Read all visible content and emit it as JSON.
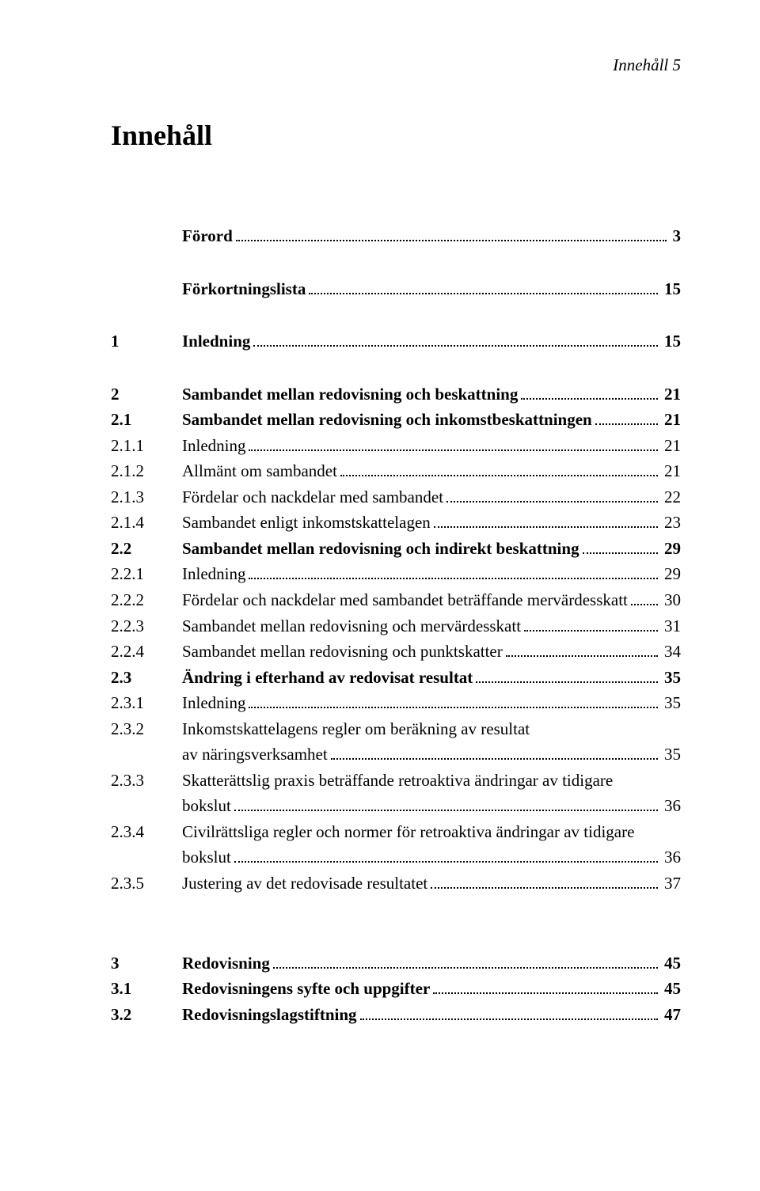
{
  "running_head": "Innehåll   5",
  "chapter_title": "Innehåll",
  "font": {
    "family": "Times New Roman",
    "body_size_pt": 16,
    "title_size_pt": 27,
    "color": "#000000",
    "background": "#ffffff",
    "leader_color": "#000000"
  },
  "toc": [
    {
      "type": "entry",
      "num": "",
      "title": "Förord",
      "page": "3",
      "bold": true
    },
    {
      "type": "gap"
    },
    {
      "type": "entry",
      "num": "",
      "title": "Förkortningslista",
      "page": "15",
      "bold": true
    },
    {
      "type": "gap"
    },
    {
      "type": "entry",
      "num": "1",
      "title": "Inledning",
      "page": "15",
      "bold": true
    },
    {
      "type": "gap"
    },
    {
      "type": "entry",
      "num": "2",
      "title": "Sambandet mellan redovisning och beskattning",
      "page": "21",
      "bold": true
    },
    {
      "type": "entry",
      "num": "2.1",
      "title": "Sambandet mellan redovisning och inkomstbeskattningen",
      "page": "21",
      "bold": true
    },
    {
      "type": "entry",
      "num": "2.1.1",
      "title": "Inledning",
      "page": "21",
      "bold": false
    },
    {
      "type": "entry",
      "num": "2.1.2",
      "title": "Allmänt om sambandet",
      "page": "21",
      "bold": false
    },
    {
      "type": "entry",
      "num": "2.1.3",
      "title": "Fördelar och nackdelar med sambandet",
      "page": "22",
      "bold": false
    },
    {
      "type": "entry",
      "num": "2.1.4",
      "title": "Sambandet enligt inkomstskattelagen",
      "page": "23",
      "bold": false
    },
    {
      "type": "entry",
      "num": "2.2",
      "title": "Sambandet mellan redovisning och indirekt beskattning",
      "page": "29",
      "bold": true
    },
    {
      "type": "entry",
      "num": "2.2.1",
      "title": "Inledning",
      "page": "29",
      "bold": false
    },
    {
      "type": "entry",
      "num": "2.2.2",
      "title": "Fördelar och nackdelar med sambandet beträffande mervärdesskatt",
      "page": "30",
      "bold": false
    },
    {
      "type": "entry",
      "num": "2.2.3",
      "title": "Sambandet mellan redovisning och mervärdesskatt",
      "page": "31",
      "bold": false
    },
    {
      "type": "entry",
      "num": "2.2.4",
      "title": "Sambandet mellan redovisning och punktskatter",
      "page": "34",
      "bold": false
    },
    {
      "type": "entry",
      "num": "2.3",
      "title": "Ändring i efterhand av redovisat resultat",
      "page": "35",
      "bold": true
    },
    {
      "type": "entry",
      "num": "2.3.1",
      "title": "Inledning",
      "page": "35",
      "bold": false
    },
    {
      "type": "wrap",
      "num": "2.3.2",
      "first": "Inkomstskattelagens regler om beräkning av resultat",
      "second": "av näringsverksamhet",
      "page": "35",
      "bold": false
    },
    {
      "type": "wrap",
      "num": "2.3.3",
      "first": "Skatterättslig praxis beträffande retroaktiva ändringar av tidigare",
      "second": "bokslut",
      "page": "36",
      "bold": false
    },
    {
      "type": "wrap",
      "num": "2.3.4",
      "first": "Civilrättsliga regler och normer för retroaktiva ändringar av tidigare",
      "second": "bokslut",
      "page": "36",
      "bold": false
    },
    {
      "type": "entry",
      "num": "2.3.5",
      "title": "Justering av det redovisade resultatet",
      "page": "37",
      "bold": false
    },
    {
      "type": "gap"
    },
    {
      "type": "gap"
    },
    {
      "type": "entry",
      "num": "3",
      "title": "Redovisning",
      "page": "45",
      "bold": true
    },
    {
      "type": "entry",
      "num": "3.1",
      "title": "Redovisningens syfte och uppgifter",
      "page": "45",
      "bold": true
    },
    {
      "type": "entry",
      "num": "3.2",
      "title": "Redovisningslagstiftning",
      "page": "47",
      "bold": true
    }
  ]
}
